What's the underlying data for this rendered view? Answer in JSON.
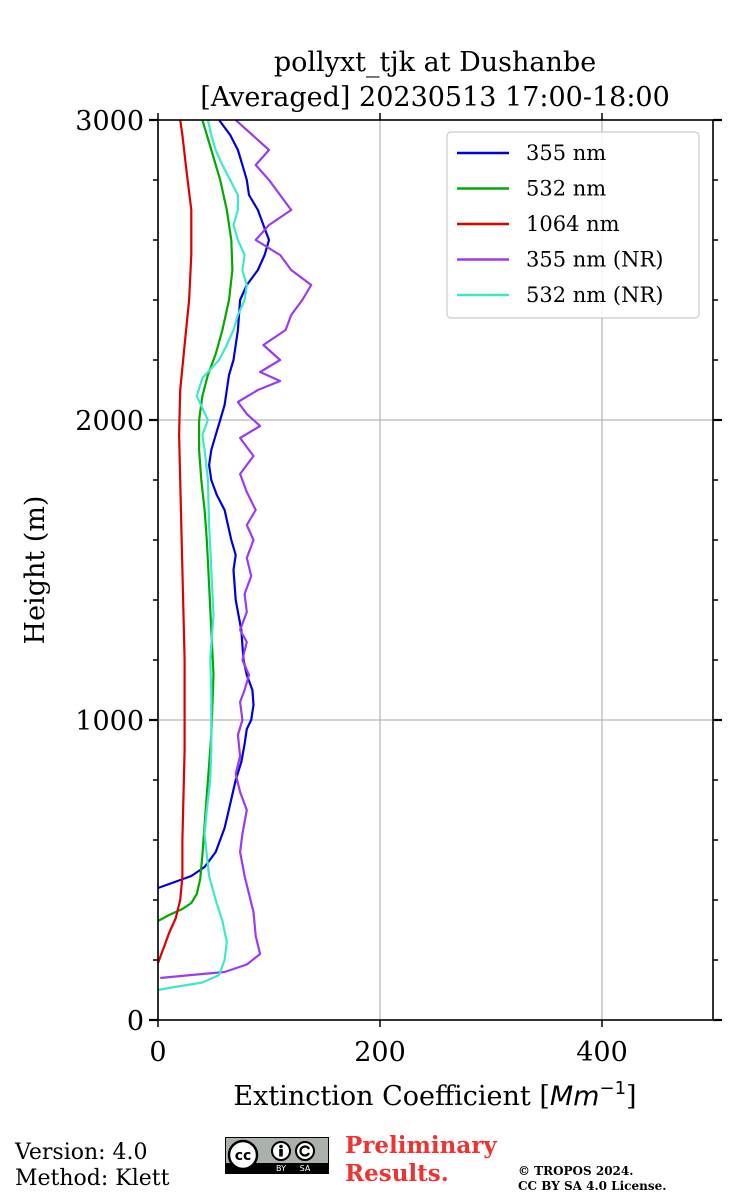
{
  "chart_data": {
    "type": "line",
    "title_line1": "pollyxt_tjk at Dushanbe",
    "title_line2": "[Averaged] 20230513 17:00-18:00",
    "xlabel_prefix": "Extinction Coefficient [",
    "xlabel_unit": "Mm",
    "xlabel_exp": "−1",
    "xlabel_suffix": "]",
    "ylabel": "Height (m)",
    "xlim": [
      0,
      500
    ],
    "ylim": [
      0,
      3000
    ],
    "xticks": [
      0,
      200,
      400
    ],
    "xtick_labels": [
      "0",
      "200",
      "400"
    ],
    "yticks": [
      0,
      1000,
      2000,
      3000
    ],
    "ytick_labels": [
      "0",
      "1000",
      "2000",
      "3000"
    ],
    "grid": true,
    "legend_position": "top-right",
    "series": [
      {
        "name": "355 nm",
        "color": "#0000dd",
        "points": [
          [
            0,
            440
          ],
          [
            15,
            460
          ],
          [
            30,
            480
          ],
          [
            42,
            510
          ],
          [
            52,
            560
          ],
          [
            60,
            640
          ],
          [
            65,
            720
          ],
          [
            70,
            800
          ],
          [
            75,
            860
          ],
          [
            78,
            920
          ],
          [
            80,
            970
          ],
          [
            84,
            1000
          ],
          [
            86,
            1050
          ],
          [
            85,
            1100
          ],
          [
            80,
            1150
          ],
          [
            77,
            1200
          ],
          [
            75,
            1300
          ],
          [
            70,
            1400
          ],
          [
            68,
            1500
          ],
          [
            70,
            1550
          ],
          [
            66,
            1600
          ],
          [
            60,
            1700
          ],
          [
            53,
            1750
          ],
          [
            48,
            1800
          ],
          [
            46,
            1850
          ],
          [
            48,
            1900
          ],
          [
            52,
            1950
          ],
          [
            56,
            2000
          ],
          [
            60,
            2050
          ],
          [
            62,
            2100
          ],
          [
            64,
            2150
          ],
          [
            68,
            2200
          ],
          [
            70,
            2250
          ],
          [
            72,
            2300
          ],
          [
            74,
            2400
          ],
          [
            80,
            2450
          ],
          [
            90,
            2500
          ],
          [
            96,
            2550
          ],
          [
            100,
            2600
          ],
          [
            95,
            2650
          ],
          [
            90,
            2700
          ],
          [
            82,
            2750
          ],
          [
            80,
            2800
          ],
          [
            76,
            2850
          ],
          [
            72,
            2900
          ],
          [
            65,
            2950
          ],
          [
            55,
            3000
          ]
        ]
      },
      {
        "name": "532 nm",
        "color": "#00aa00",
        "points": [
          [
            0,
            330
          ],
          [
            10,
            350
          ],
          [
            22,
            370
          ],
          [
            30,
            390
          ],
          [
            35,
            420
          ],
          [
            38,
            470
          ],
          [
            40,
            550
          ],
          [
            42,
            650
          ],
          [
            44,
            750
          ],
          [
            46,
            850
          ],
          [
            48,
            950
          ],
          [
            49,
            1050
          ],
          [
            50,
            1150
          ],
          [
            48,
            1300
          ],
          [
            46,
            1450
          ],
          [
            44,
            1600
          ],
          [
            42,
            1700
          ],
          [
            39,
            1800
          ],
          [
            37,
            1900
          ],
          [
            37,
            2000
          ],
          [
            40,
            2080
          ],
          [
            45,
            2150
          ],
          [
            52,
            2220
          ],
          [
            58,
            2300
          ],
          [
            64,
            2400
          ],
          [
            67,
            2500
          ],
          [
            66,
            2600
          ],
          [
            62,
            2700
          ],
          [
            56,
            2800
          ],
          [
            48,
            2900
          ],
          [
            40,
            3000
          ]
        ]
      },
      {
        "name": "1064 nm",
        "color": "#dd0000",
        "points": [
          [
            0,
            190
          ],
          [
            5,
            240
          ],
          [
            10,
            290
          ],
          [
            16,
            340
          ],
          [
            20,
            400
          ],
          [
            22,
            480
          ],
          [
            22,
            600
          ],
          [
            23,
            750
          ],
          [
            24,
            900
          ],
          [
            24,
            1050
          ],
          [
            24,
            1200
          ],
          [
            23,
            1350
          ],
          [
            22,
            1500
          ],
          [
            21,
            1650
          ],
          [
            20,
            1800
          ],
          [
            19,
            1950
          ],
          [
            20,
            2100
          ],
          [
            24,
            2250
          ],
          [
            28,
            2400
          ],
          [
            30,
            2550
          ],
          [
            30,
            2700
          ],
          [
            25,
            2850
          ],
          [
            22,
            2950
          ],
          [
            20,
            3000
          ]
        ]
      },
      {
        "name": "355 nm (NR)",
        "color": "#9b3bf0",
        "points": [
          [
            2,
            140
          ],
          [
            30,
            150
          ],
          [
            60,
            160
          ],
          [
            80,
            185
          ],
          [
            92,
            220
          ],
          [
            88,
            280
          ],
          [
            86,
            360
          ],
          [
            82,
            420
          ],
          [
            78,
            480
          ],
          [
            74,
            560
          ],
          [
            76,
            620
          ],
          [
            80,
            700
          ],
          [
            74,
            760
          ],
          [
            70,
            820
          ],
          [
            74,
            880
          ],
          [
            72,
            950
          ],
          [
            76,
            1000
          ],
          [
            74,
            1060
          ],
          [
            78,
            1100
          ],
          [
            82,
            1150
          ],
          [
            76,
            1200
          ],
          [
            80,
            1260
          ],
          [
            74,
            1300
          ],
          [
            80,
            1360
          ],
          [
            78,
            1420
          ],
          [
            84,
            1480
          ],
          [
            80,
            1540
          ],
          [
            86,
            1600
          ],
          [
            80,
            1650
          ],
          [
            88,
            1700
          ],
          [
            80,
            1760
          ],
          [
            74,
            1820
          ],
          [
            86,
            1880
          ],
          [
            74,
            1940
          ],
          [
            92,
            1980
          ],
          [
            80,
            2020
          ],
          [
            72,
            2060
          ],
          [
            90,
            2100
          ],
          [
            110,
            2130
          ],
          [
            92,
            2160
          ],
          [
            110,
            2200
          ],
          [
            95,
            2250
          ],
          [
            115,
            2300
          ],
          [
            120,
            2350
          ],
          [
            130,
            2400
          ],
          [
            138,
            2450
          ],
          [
            120,
            2500
          ],
          [
            110,
            2550
          ],
          [
            88,
            2600
          ],
          [
            100,
            2650
          ],
          [
            120,
            2700
          ],
          [
            110,
            2750
          ],
          [
            100,
            2800
          ],
          [
            88,
            2850
          ],
          [
            100,
            2900
          ],
          [
            85,
            2950
          ],
          [
            70,
            3000
          ]
        ]
      },
      {
        "name": "532 nm (NR)",
        "color": "#3ee8c8",
        "points": [
          [
            0,
            100
          ],
          [
            15,
            110
          ],
          [
            40,
            125
          ],
          [
            55,
            150
          ],
          [
            60,
            200
          ],
          [
            62,
            260
          ],
          [
            58,
            330
          ],
          [
            52,
            400
          ],
          [
            46,
            480
          ],
          [
            44,
            550
          ],
          [
            42,
            620
          ],
          [
            44,
            700
          ],
          [
            47,
            800
          ],
          [
            48,
            900
          ],
          [
            48,
            1000
          ],
          [
            48,
            1100
          ],
          [
            47,
            1200
          ],
          [
            50,
            1350
          ],
          [
            48,
            1500
          ],
          [
            46,
            1650
          ],
          [
            45,
            1800
          ],
          [
            42,
            1900
          ],
          [
            40,
            1950
          ],
          [
            45,
            2000
          ],
          [
            35,
            2080
          ],
          [
            40,
            2140
          ],
          [
            55,
            2200
          ],
          [
            62,
            2250
          ],
          [
            68,
            2300
          ],
          [
            72,
            2350
          ],
          [
            78,
            2400
          ],
          [
            80,
            2450
          ],
          [
            76,
            2500
          ],
          [
            78,
            2550
          ],
          [
            72,
            2600
          ],
          [
            68,
            2650
          ],
          [
            72,
            2700
          ],
          [
            72,
            2750
          ],
          [
            65,
            2800
          ],
          [
            58,
            2850
          ],
          [
            52,
            2900
          ],
          [
            48,
            2950
          ],
          [
            45,
            3000
          ]
        ]
      }
    ]
  },
  "footer": {
    "version": "Version: 4.0",
    "method": "Method: Klett",
    "preliminary_line1": "Preliminary",
    "preliminary_line2": "Results.",
    "copyright_line1": "© TROPOS 2024.",
    "copyright_line2": "CC BY SA 4.0 License.",
    "license_badge": [
      "cc",
      "BY",
      "SA"
    ]
  }
}
